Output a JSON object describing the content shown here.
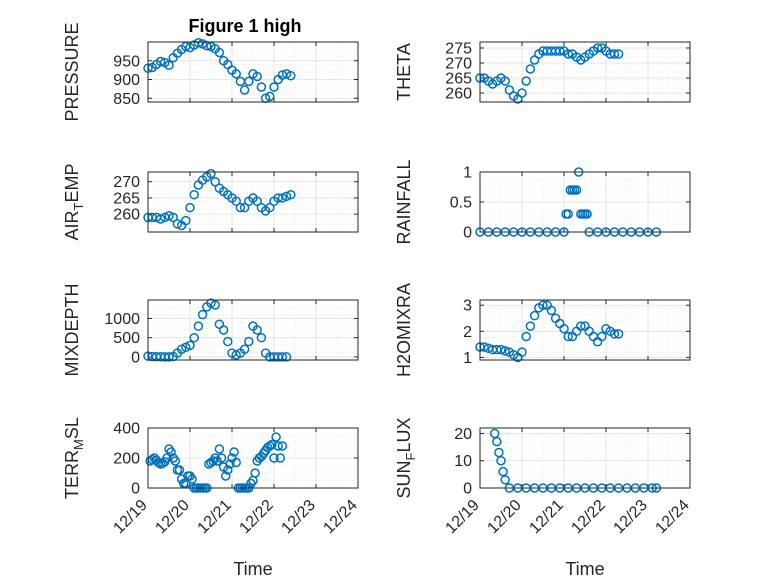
{
  "figure": {
    "title": "Figure 1 high"
  },
  "colors": {
    "marker": "#0072BD",
    "grid": "#DFDFDF",
    "minor_grid": "#E6E6E6",
    "axis": "#262626",
    "background": "#FFFFFF"
  },
  "chart_data": [
    {
      "type": "scatter",
      "title": "Figure 1 high",
      "ylabel": "PRESSURE",
      "xlabel": "",
      "ylim": [
        840,
        1000
      ],
      "yticks": [
        850,
        900,
        950
      ],
      "ytick_labels": [
        "850",
        "900",
        "950"
      ],
      "grid": true,
      "points": [
        [
          0.0,
          930
        ],
        [
          0.1,
          932
        ],
        [
          0.2,
          940
        ],
        [
          0.3,
          948
        ],
        [
          0.4,
          945
        ],
        [
          0.5,
          938
        ],
        [
          0.6,
          958
        ],
        [
          0.7,
          970
        ],
        [
          0.8,
          980
        ],
        [
          0.9,
          988
        ],
        [
          1.0,
          985
        ],
        [
          1.1,
          992
        ],
        [
          1.2,
          998
        ],
        [
          1.3,
          995
        ],
        [
          1.4,
          990
        ],
        [
          1.5,
          988
        ],
        [
          1.6,
          982
        ],
        [
          1.7,
          972
        ],
        [
          1.8,
          950
        ],
        [
          1.9,
          940
        ],
        [
          2.0,
          925
        ],
        [
          2.1,
          915
        ],
        [
          2.2,
          895
        ],
        [
          2.3,
          872
        ],
        [
          2.4,
          895
        ],
        [
          2.5,
          915
        ],
        [
          2.6,
          908
        ],
        [
          2.7,
          880
        ],
        [
          2.8,
          850
        ],
        [
          2.9,
          855
        ],
        [
          3.0,
          880
        ],
        [
          3.1,
          900
        ],
        [
          3.2,
          912
        ],
        [
          3.3,
          915
        ],
        [
          3.4,
          910
        ]
      ]
    },
    {
      "type": "scatter",
      "ylabel": "THETA",
      "xlabel": "",
      "ylim": [
        257,
        277
      ],
      "yticks": [
        260,
        265,
        270,
        275
      ],
      "ytick_labels": [
        "260",
        "265",
        "270",
        "275"
      ],
      "grid": true,
      "points": [
        [
          0.0,
          265
        ],
        [
          0.1,
          265
        ],
        [
          0.2,
          264
        ],
        [
          0.3,
          263
        ],
        [
          0.4,
          264
        ],
        [
          0.5,
          265
        ],
        [
          0.6,
          264
        ],
        [
          0.7,
          261
        ],
        [
          0.8,
          259
        ],
        [
          0.9,
          258
        ],
        [
          1.0,
          260
        ],
        [
          1.1,
          264
        ],
        [
          1.2,
          268
        ],
        [
          1.3,
          271
        ],
        [
          1.4,
          273
        ],
        [
          1.5,
          274
        ],
        [
          1.6,
          274
        ],
        [
          1.7,
          274
        ],
        [
          1.8,
          274
        ],
        [
          1.9,
          274
        ],
        [
          2.0,
          274
        ],
        [
          2.1,
          273
        ],
        [
          2.2,
          273
        ],
        [
          2.3,
          272
        ],
        [
          2.4,
          271
        ],
        [
          2.5,
          272
        ],
        [
          2.6,
          273
        ],
        [
          2.7,
          274
        ],
        [
          2.8,
          275
        ],
        [
          2.9,
          275
        ],
        [
          3.0,
          274
        ],
        [
          3.1,
          273
        ],
        [
          3.2,
          273
        ],
        [
          3.3,
          273
        ]
      ]
    },
    {
      "type": "scatter",
      "ylabel": "AIR_TEMP",
      "ylabel_parts": [
        "AIR",
        "T",
        "EMP"
      ],
      "xlabel": "",
      "ylim": [
        254.5,
        273
      ],
      "yticks": [
        260,
        265,
        270
      ],
      "ytick_labels": [
        "260",
        "265",
        "270"
      ],
      "grid": true,
      "points": [
        [
          0.0,
          259
        ],
        [
          0.1,
          259
        ],
        [
          0.2,
          259
        ],
        [
          0.3,
          258.5
        ],
        [
          0.4,
          259
        ],
        [
          0.5,
          259.5
        ],
        [
          0.6,
          259
        ],
        [
          0.7,
          257
        ],
        [
          0.8,
          256.5
        ],
        [
          0.9,
          258
        ],
        [
          1.0,
          262
        ],
        [
          1.1,
          266
        ],
        [
          1.2,
          269
        ],
        [
          1.3,
          270.5
        ],
        [
          1.4,
          271.5
        ],
        [
          1.5,
          272.5
        ],
        [
          1.6,
          270
        ],
        [
          1.7,
          268
        ],
        [
          1.8,
          267
        ],
        [
          1.9,
          266
        ],
        [
          2.0,
          265
        ],
        [
          2.1,
          264
        ],
        [
          2.2,
          262
        ],
        [
          2.3,
          262
        ],
        [
          2.4,
          264
        ],
        [
          2.5,
          265
        ],
        [
          2.6,
          264
        ],
        [
          2.7,
          262
        ],
        [
          2.8,
          261
        ],
        [
          2.9,
          262
        ],
        [
          3.0,
          264
        ],
        [
          3.1,
          265
        ],
        [
          3.2,
          265
        ],
        [
          3.3,
          265.5
        ],
        [
          3.4,
          266
        ]
      ]
    },
    {
      "type": "scatter",
      "ylabel": "RAINFALL",
      "xlabel": "",
      "ylim": [
        0,
        1
      ],
      "yticks": [
        0,
        0.5,
        1
      ],
      "ytick_labels": [
        "0",
        "0.5",
        "1"
      ],
      "grid": true,
      "points": [
        [
          0.0,
          0
        ],
        [
          0.2,
          0
        ],
        [
          0.4,
          0
        ],
        [
          0.6,
          0
        ],
        [
          0.8,
          0
        ],
        [
          1.0,
          0
        ],
        [
          1.2,
          0
        ],
        [
          1.4,
          0
        ],
        [
          1.6,
          0
        ],
        [
          1.8,
          0
        ],
        [
          2.0,
          0
        ],
        [
          2.05,
          0.3
        ],
        [
          2.1,
          0.3
        ],
        [
          2.15,
          0.7
        ],
        [
          2.2,
          0.7
        ],
        [
          2.25,
          0.7
        ],
        [
          2.3,
          0.7
        ],
        [
          2.35,
          1.0
        ],
        [
          2.4,
          0.3
        ],
        [
          2.45,
          0.3
        ],
        [
          2.5,
          0.3
        ],
        [
          2.55,
          0.3
        ],
        [
          2.6,
          0
        ],
        [
          2.8,
          0
        ],
        [
          3.0,
          0
        ],
        [
          3.2,
          0
        ],
        [
          3.4,
          0
        ],
        [
          3.6,
          0
        ],
        [
          3.8,
          0
        ],
        [
          4.0,
          0
        ],
        [
          4.2,
          0
        ]
      ]
    },
    {
      "type": "scatter",
      "ylabel": "MIXDEPTH",
      "xlabel": "",
      "ylim": [
        -80,
        1480
      ],
      "yticks": [
        0,
        500,
        1000
      ],
      "ytick_labels": [
        "0",
        "500",
        "1000"
      ],
      "grid": true,
      "points": [
        [
          0.0,
          20
        ],
        [
          0.1,
          10
        ],
        [
          0.2,
          5
        ],
        [
          0.3,
          5
        ],
        [
          0.4,
          0
        ],
        [
          0.5,
          0
        ],
        [
          0.6,
          10
        ],
        [
          0.7,
          100
        ],
        [
          0.8,
          200
        ],
        [
          0.9,
          250
        ],
        [
          1.0,
          300
        ],
        [
          1.1,
          500
        ],
        [
          1.2,
          800
        ],
        [
          1.3,
          1100
        ],
        [
          1.4,
          1300
        ],
        [
          1.5,
          1400
        ],
        [
          1.6,
          1350
        ],
        [
          1.7,
          850
        ],
        [
          1.8,
          700
        ],
        [
          1.9,
          400
        ],
        [
          2.0,
          100
        ],
        [
          2.1,
          50
        ],
        [
          2.2,
          100
        ],
        [
          2.3,
          200
        ],
        [
          2.4,
          400
        ],
        [
          2.5,
          800
        ],
        [
          2.6,
          700
        ],
        [
          2.7,
          500
        ],
        [
          2.8,
          100
        ],
        [
          2.9,
          0
        ],
        [
          3.0,
          0
        ],
        [
          3.1,
          0
        ],
        [
          3.2,
          0
        ],
        [
          3.3,
          0
        ]
      ]
    },
    {
      "type": "scatter",
      "ylabel": "H2OMIXRA",
      "xlabel": "",
      "ylim": [
        0.9,
        3.2
      ],
      "yticks": [
        1,
        2,
        3
      ],
      "ytick_labels": [
        "1",
        "2",
        "3"
      ],
      "grid": true,
      "points": [
        [
          0.0,
          1.4
        ],
        [
          0.1,
          1.4
        ],
        [
          0.2,
          1.35
        ],
        [
          0.3,
          1.3
        ],
        [
          0.4,
          1.3
        ],
        [
          0.5,
          1.3
        ],
        [
          0.6,
          1.25
        ],
        [
          0.7,
          1.2
        ],
        [
          0.8,
          1.1
        ],
        [
          0.9,
          1.0
        ],
        [
          1.0,
          1.2
        ],
        [
          1.1,
          1.8
        ],
        [
          1.2,
          2.2
        ],
        [
          1.3,
          2.6
        ],
        [
          1.4,
          2.9
        ],
        [
          1.5,
          3.0
        ],
        [
          1.6,
          3.0
        ],
        [
          1.7,
          2.8
        ],
        [
          1.8,
          2.5
        ],
        [
          1.9,
          2.3
        ],
        [
          2.0,
          2.1
        ],
        [
          2.1,
          1.8
        ],
        [
          2.2,
          1.8
        ],
        [
          2.3,
          2.0
        ],
        [
          2.4,
          2.2
        ],
        [
          2.5,
          2.2
        ],
        [
          2.6,
          2.0
        ],
        [
          2.7,
          1.8
        ],
        [
          2.8,
          1.6
        ],
        [
          2.9,
          1.8
        ],
        [
          3.0,
          2.1
        ],
        [
          3.1,
          2.0
        ],
        [
          3.2,
          1.9
        ],
        [
          3.3,
          1.9
        ]
      ]
    },
    {
      "type": "scatter",
      "ylabel": "TERR_MSL",
      "ylabel_parts": [
        "TERR",
        "M",
        "SL"
      ],
      "xlabel": "Time",
      "xticks": [
        "12/19",
        "12/20",
        "12/21",
        "12/22",
        "12/23",
        "12/24"
      ],
      "ylim": [
        0,
        400
      ],
      "yticks": [
        0,
        200,
        400
      ],
      "ytick_labels": [
        "0",
        "200",
        "400"
      ],
      "grid": true,
      "points": [
        [
          0.05,
          180
        ],
        [
          0.1,
          190
        ],
        [
          0.15,
          200
        ],
        [
          0.2,
          185
        ],
        [
          0.25,
          170
        ],
        [
          0.3,
          160
        ],
        [
          0.35,
          165
        ],
        [
          0.4,
          175
        ],
        [
          0.45,
          200
        ],
        [
          0.5,
          260
        ],
        [
          0.55,
          240
        ],
        [
          0.6,
          200
        ],
        [
          0.65,
          180
        ],
        [
          0.7,
          120
        ],
        [
          0.75,
          120
        ],
        [
          0.8,
          60
        ],
        [
          0.85,
          30
        ],
        [
          0.9,
          30
        ],
        [
          0.95,
          80
        ],
        [
          1.0,
          80
        ],
        [
          1.05,
          60
        ],
        [
          1.1,
          0
        ],
        [
          1.15,
          0
        ],
        [
          1.2,
          0
        ],
        [
          1.25,
          0
        ],
        [
          1.3,
          0
        ],
        [
          1.35,
          0
        ],
        [
          1.4,
          0
        ],
        [
          1.45,
          160
        ],
        [
          1.5,
          170
        ],
        [
          1.55,
          180
        ],
        [
          1.6,
          200
        ],
        [
          1.65,
          180
        ],
        [
          1.7,
          260
        ],
        [
          1.75,
          200
        ],
        [
          1.8,
          140
        ],
        [
          1.85,
          80
        ],
        [
          1.9,
          120
        ],
        [
          1.95,
          160
        ],
        [
          2.0,
          200
        ],
        [
          2.05,
          240
        ],
        [
          2.1,
          170
        ],
        [
          2.15,
          0
        ],
        [
          2.2,
          0
        ],
        [
          2.25,
          0
        ],
        [
          2.3,
          0
        ],
        [
          2.35,
          0
        ],
        [
          2.4,
          0
        ],
        [
          2.45,
          30
        ],
        [
          2.5,
          50
        ],
        [
          2.55,
          100
        ],
        [
          2.6,
          180
        ],
        [
          2.65,
          200
        ],
        [
          2.7,
          210
        ],
        [
          2.75,
          230
        ],
        [
          2.8,
          250
        ],
        [
          2.85,
          270
        ],
        [
          2.9,
          280
        ],
        [
          2.95,
          290
        ],
        [
          3.0,
          200
        ],
        [
          3.05,
          340
        ],
        [
          3.1,
          280
        ],
        [
          3.15,
          200
        ],
        [
          3.2,
          280
        ]
      ]
    },
    {
      "type": "scatter",
      "ylabel": "SUN_FLUX",
      "ylabel_parts": [
        "SUN",
        "F",
        "LUX"
      ],
      "xlabel": "Time",
      "xticks": [
        "12/19",
        "12/20",
        "12/21",
        "12/22",
        "12/23",
        "12/24"
      ],
      "ylim": [
        0,
        22
      ],
      "yticks": [
        0,
        10,
        20
      ],
      "ytick_labels": [
        "0",
        "10",
        "20"
      ],
      "grid": true,
      "points": [
        [
          0.35,
          20
        ],
        [
          0.4,
          17
        ],
        [
          0.45,
          13
        ],
        [
          0.5,
          10
        ],
        [
          0.55,
          6
        ],
        [
          0.6,
          3
        ],
        [
          0.7,
          0
        ],
        [
          0.9,
          0
        ],
        [
          1.1,
          0
        ],
        [
          1.3,
          0
        ],
        [
          1.5,
          0
        ],
        [
          1.7,
          0
        ],
        [
          1.9,
          0
        ],
        [
          2.1,
          0
        ],
        [
          2.3,
          0
        ],
        [
          2.5,
          0
        ],
        [
          2.7,
          0
        ],
        [
          2.9,
          0
        ],
        [
          3.1,
          0
        ],
        [
          3.3,
          0
        ],
        [
          3.5,
          0
        ],
        [
          3.7,
          0
        ],
        [
          3.9,
          0
        ],
        [
          4.1,
          0
        ],
        [
          4.2,
          0
        ]
      ]
    }
  ]
}
